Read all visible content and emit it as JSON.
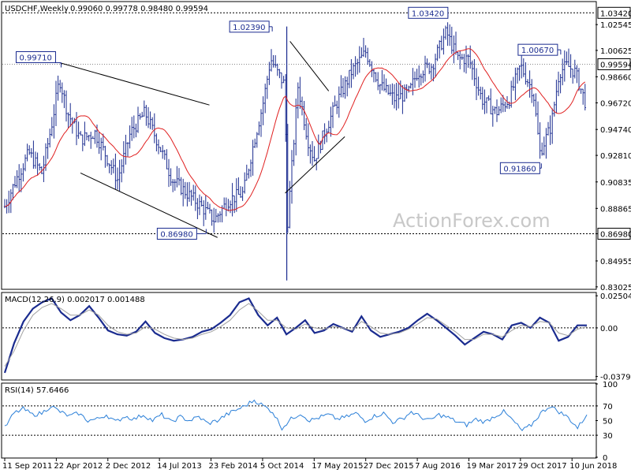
{
  "header": {
    "symbol": "USDCHF,Weekly",
    "ohlc": "0.99060 0.99778 0.98480 0.99594"
  },
  "watermark": "ActionForex.com",
  "colors": {
    "bars": "#1a2b8f",
    "ma": "#e02020",
    "macd": "#1a2b8f",
    "signal": "#a0a0a0",
    "rsi": "#2a7fd8",
    "grid": "#000000"
  },
  "chart_data": [
    {
      "type": "ohlc",
      "panel": "price",
      "title": "USDCHF,Weekly",
      "x_ticks": [
        "11 Sep 2011",
        "22 Apr 2012",
        "2 Dec 2012",
        "14 Jul 2013",
        "23 Feb 2014",
        "5 Oct 2014",
        "17 May 2015",
        "27 Dec 2015",
        "7 Aug 2016",
        "19 Mar 2017",
        "29 Oct 2017",
        "10 Jun 2018"
      ],
      "y_ticks": [
        "1.02545",
        "1.00625",
        "0.98660",
        "0.96720",
        "0.94740",
        "0.92810",
        "0.90835",
        "0.88865",
        "0.86980",
        "0.84955",
        "0.83025"
      ],
      "ylim": [
        0.829,
        1.042
      ],
      "last_price": "0.99594",
      "level_lines": [
        {
          "value": 1.0342,
          "label": "1.03420"
        },
        {
          "value": 0.8698,
          "label": "0.86980"
        }
      ],
      "annotations": [
        {
          "label": "0.99710",
          "value": 0.9971,
          "date": "2012-05-06"
        },
        {
          "label": "1.02390",
          "value": 1.0239,
          "date": "2014-11-09"
        },
        {
          "label": "1.03420",
          "value": 1.0342,
          "date": "2016-12-11"
        },
        {
          "label": "0.86980",
          "value": 0.8698,
          "date": "2014-01-26"
        },
        {
          "label": "1.00670",
          "value": 1.0067,
          "date": "2018-04-15"
        },
        {
          "label": "0.91860",
          "value": 0.9186,
          "date": "2018-01-21"
        }
      ],
      "trend_lines": [
        {
          "from": [
            "2012-05-06",
            0.9971
          ],
          "to": [
            "2014-02-16",
            0.9656
          ]
        },
        {
          "from": [
            "2012-08-05",
            0.915
          ],
          "to": [
            "2014-03-23",
            0.867
          ]
        },
        {
          "from": [
            "2015-02-01",
            1.013
          ],
          "to": [
            "2015-07-19",
            0.976
          ]
        },
        {
          "from": [
            "2015-01-11",
            0.9
          ],
          "to": [
            "2015-09-27",
            0.942
          ]
        }
      ],
      "close_path": [
        [
          "2011-09-11",
          0.89
        ],
        [
          "2011-10-30",
          0.91
        ],
        [
          "2011-12-25",
          0.93
        ],
        [
          "2012-02-19",
          0.915
        ],
        [
          "2012-04-01",
          0.95
        ],
        [
          "2012-05-06",
          0.985
        ],
        [
          "2012-06-10",
          0.96
        ],
        [
          "2012-08-05",
          0.94
        ],
        [
          "2012-10-07",
          0.945
        ],
        [
          "2012-12-02",
          0.925
        ],
        [
          "2013-01-13",
          0.91
        ],
        [
          "2013-03-10",
          0.945
        ],
        [
          "2013-05-12",
          0.96
        ],
        [
          "2013-07-14",
          0.935
        ],
        [
          "2013-09-08",
          0.91
        ],
        [
          "2013-11-10",
          0.9
        ],
        [
          "2014-01-12",
          0.89
        ],
        [
          "2014-03-09",
          0.88
        ],
        [
          "2014-05-11",
          0.895
        ],
        [
          "2014-07-13",
          0.9
        ],
        [
          "2014-08-31",
          0.94
        ],
        [
          "2014-10-05",
          0.965
        ],
        [
          "2014-11-09",
          1.0
        ],
        [
          "2014-12-07",
          0.99
        ],
        [
          "2015-01-11",
          0.98
        ],
        [
          "2015-01-18",
          0.87
        ],
        [
          "2015-03-08",
          0.98
        ],
        [
          "2015-04-19",
          0.94
        ],
        [
          "2015-05-17",
          0.925
        ],
        [
          "2015-07-12",
          0.95
        ],
        [
          "2015-08-30",
          0.97
        ],
        [
          "2015-10-25",
          0.99
        ],
        [
          "2015-12-27",
          1.005
        ],
        [
          "2016-02-28",
          0.98
        ],
        [
          "2016-05-01",
          0.97
        ],
        [
          "2016-07-03",
          0.975
        ],
        [
          "2016-08-07",
          0.99
        ],
        [
          "2016-10-09",
          0.995
        ],
        [
          "2016-12-11",
          1.02
        ],
        [
          "2017-01-29",
          1.0
        ],
        [
          "2017-03-19",
          1.0
        ],
        [
          "2017-05-14",
          0.97
        ],
        [
          "2017-07-16",
          0.96
        ],
        [
          "2017-09-10",
          0.97
        ],
        [
          "2017-10-29",
          0.995
        ],
        [
          "2017-12-24",
          0.975
        ],
        [
          "2018-01-21",
          0.93
        ],
        [
          "2018-03-11",
          0.95
        ],
        [
          "2018-04-15",
          0.99
        ],
        [
          "2018-05-20",
          0.995
        ],
        [
          "2018-06-24",
          0.99
        ],
        [
          "2018-08-12",
          0.965
        ],
        [
          "2018-09-02",
          0.97
        ],
        [
          "2018-09-23",
          0.9959
        ]
      ]
    },
    {
      "type": "line",
      "panel": "macd",
      "title": "MACD(12,26,9) 0.002017 0.001488",
      "y_ticks": [
        "0.025043",
        "0.00",
        "-0.037902"
      ],
      "ylim": [
        -0.04,
        0.027
      ],
      "series": [
        {
          "name": "MACD",
          "values": [
            -0.035,
            -0.012,
            0.005,
            0.015,
            0.02,
            0.023,
            0.012,
            0.006,
            0.01,
            0.017,
            0.008,
            -0.002,
            -0.005,
            -0.006,
            -0.003,
            0.005,
            -0.004,
            -0.008,
            -0.01,
            -0.009,
            -0.007,
            -0.003,
            -0.001,
            0.004,
            0.01,
            0.02,
            0.023,
            0.01,
            0.002,
            0.008,
            -0.005,
            0.0,
            0.006,
            -0.004,
            -0.002,
            0.003,
            0.0,
            -0.003,
            0.009,
            -0.002,
            -0.007,
            -0.005,
            -0.003,
            0.0,
            0.006,
            0.011,
            0.006,
            0.0,
            -0.006,
            -0.013,
            -0.008,
            -0.003,
            -0.005,
            -0.009,
            0.002,
            0.004,
            0.0,
            0.008,
            0.004,
            -0.01,
            -0.007,
            0.002,
            0.002
          ]
        },
        {
          "name": "Signal",
          "values": [
            -0.03,
            -0.018,
            -0.002,
            0.01,
            0.016,
            0.019,
            0.015,
            0.01,
            0.01,
            0.014,
            0.01,
            0.002,
            -0.003,
            -0.005,
            -0.004,
            0.001,
            -0.001,
            -0.005,
            -0.008,
            -0.009,
            -0.008,
            -0.005,
            -0.003,
            0.001,
            0.006,
            0.014,
            0.019,
            0.013,
            0.006,
            0.006,
            0.0,
            -0.001,
            0.003,
            0.0,
            -0.001,
            0.001,
            0.0,
            -0.002,
            0.005,
            0.001,
            -0.004,
            -0.005,
            -0.004,
            -0.001,
            0.003,
            0.008,
            0.007,
            0.002,
            -0.003,
            -0.009,
            -0.009,
            -0.005,
            -0.005,
            -0.007,
            -0.002,
            0.002,
            0.001,
            0.005,
            0.004,
            -0.004,
            -0.006,
            -0.001,
            0.001
          ]
        }
      ]
    },
    {
      "type": "line",
      "panel": "rsi",
      "title": "RSI(14) 57.6466",
      "y_ticks": [
        "100",
        "70",
        "50",
        "30",
        "0"
      ],
      "ylim": [
        0,
        100
      ],
      "series": [
        {
          "name": "RSI(14)",
          "values": [
            40,
            60,
            66,
            58,
            60,
            70,
            62,
            56,
            60,
            50,
            52,
            58,
            48,
            56,
            52,
            58,
            50,
            58,
            48,
            55,
            50,
            55,
            46,
            50,
            58,
            64,
            70,
            78,
            70,
            62,
            40,
            52,
            60,
            50,
            54,
            58,
            52,
            55,
            60,
            50,
            56,
            60,
            48,
            52,
            62,
            55,
            50,
            58,
            54,
            48,
            44,
            52,
            48,
            56,
            62,
            50,
            36,
            44,
            60,
            70,
            62,
            54,
            40,
            58
          ]
        }
      ]
    }
  ]
}
